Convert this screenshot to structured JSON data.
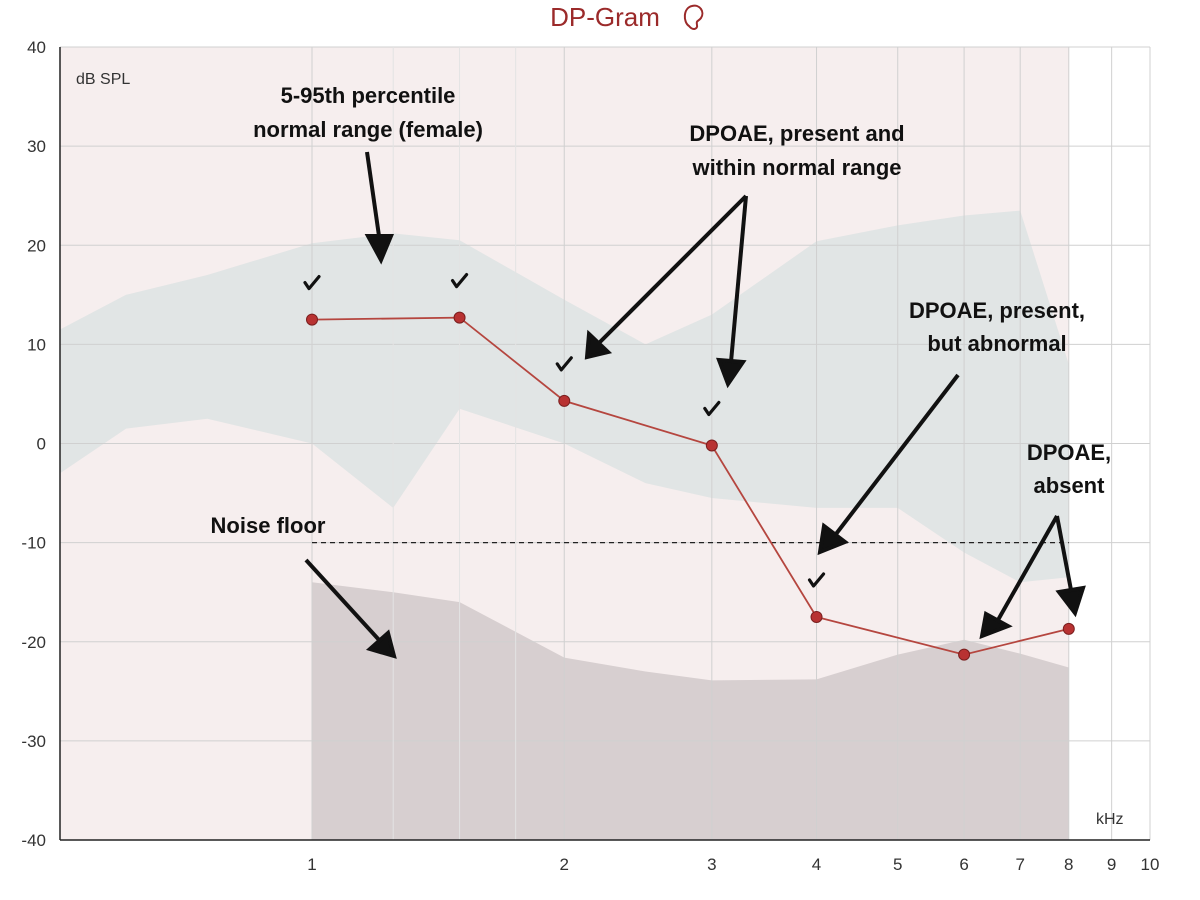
{
  "chart_data": {
    "type": "line",
    "title": "DP-Gram",
    "ylabel": "dB SPL",
    "xlabel": "kHz",
    "x_scale": "log",
    "xlim": [
      0.5,
      10
    ],
    "ylim": [
      -40,
      40
    ],
    "yticks": [
      40,
      30,
      20,
      10,
      0,
      -10,
      -20,
      -30,
      -40
    ],
    "xticks": [
      1,
      2,
      3,
      4,
      5,
      6,
      7,
      8,
      9,
      10
    ],
    "grid": true,
    "colors": {
      "dpoae_line": "#b5463f",
      "dpoae_point": "#b83232",
      "normal_range": "#dfe4e4",
      "plot_background": "#f6eeee",
      "noise_floor": "#d4cbcc",
      "title": "#9b2a2a"
    },
    "series": [
      {
        "x": [
          1.0,
          1.5,
          2.0,
          3.0,
          4.0,
          6.0,
          8.0
        ],
        "y": [
          12.5,
          12.7,
          4.3,
          -0.2,
          -17.5,
          -21.3,
          -18.7
        ],
        "present": [
          true,
          true,
          true,
          true,
          true,
          false,
          false
        ]
      }
    ],
    "normal_range": {
      "x": [
        0.5,
        0.6,
        0.75,
        1.0,
        1.25,
        1.5,
        2.0,
        2.5,
        3.0,
        4.0,
        5.0,
        6.0,
        7.0,
        8.0
      ],
      "upper": [
        11.5,
        15,
        17,
        20.2,
        21.2,
        20.5,
        14.5,
        10,
        13,
        20.4,
        22,
        23,
        23.5,
        8
      ],
      "lower": [
        -3,
        1.5,
        2.5,
        0,
        -6.5,
        3.5,
        0,
        -4,
        -5.5,
        -6.5,
        -6.5,
        -11,
        -14,
        -13.5
      ]
    },
    "noise_floor": {
      "x": [
        1.0,
        1.25,
        1.5,
        2.0,
        2.5,
        3.0,
        4.0,
        5.0,
        6.0,
        7.0,
        8.0
      ],
      "y": [
        -14,
        -15,
        -16,
        -21.6,
        -23,
        -23.9,
        -23.8,
        -21.3,
        -19.8,
        -21.2,
        -22.6
      ]
    },
    "reference_line": {
      "y": -10,
      "x": [
        1.0,
        8.0
      ],
      "style": "dashed"
    },
    "annotations": [
      {
        "text": "5-95th percentile",
        "line2": "normal  range (female)"
      },
      {
        "text": "DPOAE, present and",
        "line2": "within normal range"
      },
      {
        "text": "DPOAE, present,",
        "line2": "but abnormal"
      },
      {
        "text": "DPOAE,",
        "line2": "absent"
      },
      {
        "text": "Noise floor"
      }
    ]
  }
}
